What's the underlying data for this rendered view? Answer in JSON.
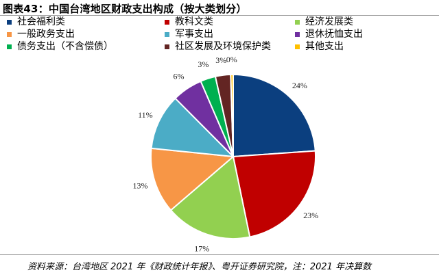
{
  "title": "图表43：中国台湾地区财政支出构成（按大类划分）",
  "source": "资料来源：台湾地区 2021 年《财政统计年报》、粤开证券研究院，注：2021 年决算数",
  "chart_data": {
    "type": "pie",
    "title": "图表43：中国台湾地区财政支出构成（按大类划分）",
    "legend_position": "top",
    "slices": [
      {
        "name": "社会福利类",
        "value": 24,
        "label": "24%",
        "color": "#0b3f7f"
      },
      {
        "name": "教科文类",
        "value": 23,
        "label": "23%",
        "color": "#c00000"
      },
      {
        "name": "经济发展类",
        "value": 17,
        "label": "17%",
        "color": "#92d050"
      },
      {
        "name": "一般政务支出",
        "value": 13,
        "label": "13%",
        "color": "#f79646"
      },
      {
        "name": "军事支出",
        "value": 11,
        "label": "11%",
        "color": "#4bacc6"
      },
      {
        "name": "退休抚恤支出",
        "value": 6,
        "label": "6%",
        "color": "#7030a0"
      },
      {
        "name": "债务支出（不含偿债）",
        "value": 3,
        "label": "3%",
        "color": "#00b050"
      },
      {
        "name": "社区发展及环境保护类",
        "value": 3,
        "label": "3%",
        "color": "#632523"
      },
      {
        "name": "其他支出",
        "value": 0.5,
        "label": "0%",
        "color": "#ffc000"
      }
    ]
  }
}
